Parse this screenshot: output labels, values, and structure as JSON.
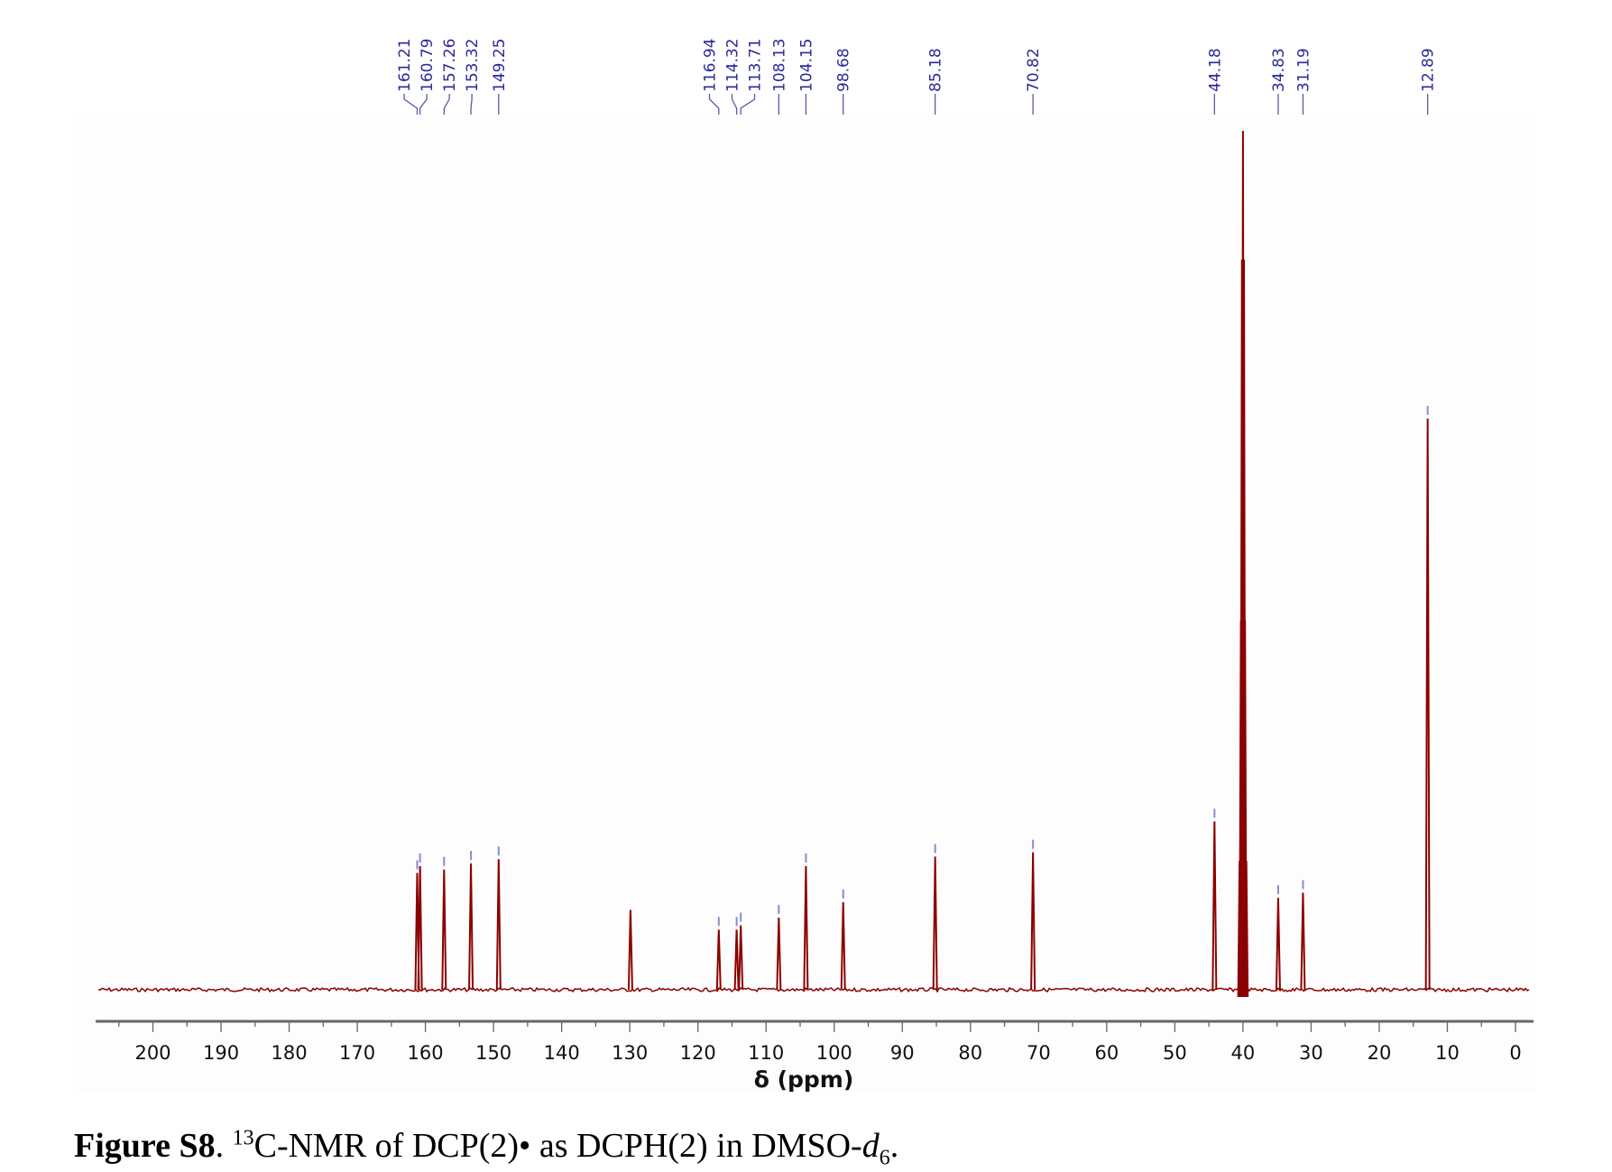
{
  "chart_data": {
    "type": "line",
    "title": "",
    "xlabel": "δ (ppm)",
    "ylabel": "",
    "xlim": [
      208,
      -2
    ],
    "x_ticks": [
      200,
      190,
      180,
      170,
      160,
      150,
      140,
      130,
      120,
      110,
      100,
      90,
      80,
      70,
      60,
      50,
      40,
      30,
      20,
      10,
      0
    ],
    "grid": false,
    "peaks": [
      {
        "ppm": 161.21,
        "label": "161.21",
        "intensity": 0.136
      },
      {
        "ppm": 160.79,
        "label": "160.79",
        "intensity": 0.144
      },
      {
        "ppm": 157.26,
        "label": "157.26",
        "intensity": 0.14
      },
      {
        "ppm": 153.32,
        "label": "153.32",
        "intensity": 0.147
      },
      {
        "ppm": 149.25,
        "label": "149.25",
        "intensity": 0.152
      },
      {
        "ppm": 129.9,
        "label": null,
        "intensity": 0.093
      },
      {
        "ppm": 116.94,
        "label": "116.94",
        "intensity": 0.07
      },
      {
        "ppm": 114.32,
        "label": "114.32",
        "intensity": 0.07
      },
      {
        "ppm": 113.71,
        "label": "113.71",
        "intensity": 0.075
      },
      {
        "ppm": 108.13,
        "label": "108.13",
        "intensity": 0.084
      },
      {
        "ppm": 104.15,
        "label": "104.15",
        "intensity": 0.144
      },
      {
        "ppm": 98.68,
        "label": "98.68",
        "intensity": 0.102
      },
      {
        "ppm": 85.18,
        "label": "85.18",
        "intensity": 0.155
      },
      {
        "ppm": 70.82,
        "label": "70.82",
        "intensity": 0.16
      },
      {
        "ppm": 44.18,
        "label": "44.18",
        "intensity": 0.196
      },
      {
        "ppm": 34.83,
        "label": "34.83",
        "intensity": 0.107
      },
      {
        "ppm": 31.19,
        "label": "31.19",
        "intensity": 0.113
      },
      {
        "ppm": 12.89,
        "label": "12.89",
        "intensity": 0.665
      }
    ],
    "solvent": {
      "name": "DMSO-d6",
      "ppm": [
        40.5,
        40.3,
        40.15,
        40.0,
        39.85,
        39.7,
        39.5
      ],
      "intensity": [
        0.15,
        0.43,
        0.85,
        1.0,
        0.85,
        0.43,
        0.15
      ]
    },
    "colors": {
      "spectrum": "#8b0000",
      "labels": "#2a2a9a",
      "axis": "#555555"
    }
  },
  "caption": {
    "figure": "Figure S8",
    "sup": "13",
    "text": "C-NMR of DCP(2)• as DCPH(2) in DMSO-",
    "solvent_italic": "d",
    "sub": "6",
    "end": "."
  }
}
